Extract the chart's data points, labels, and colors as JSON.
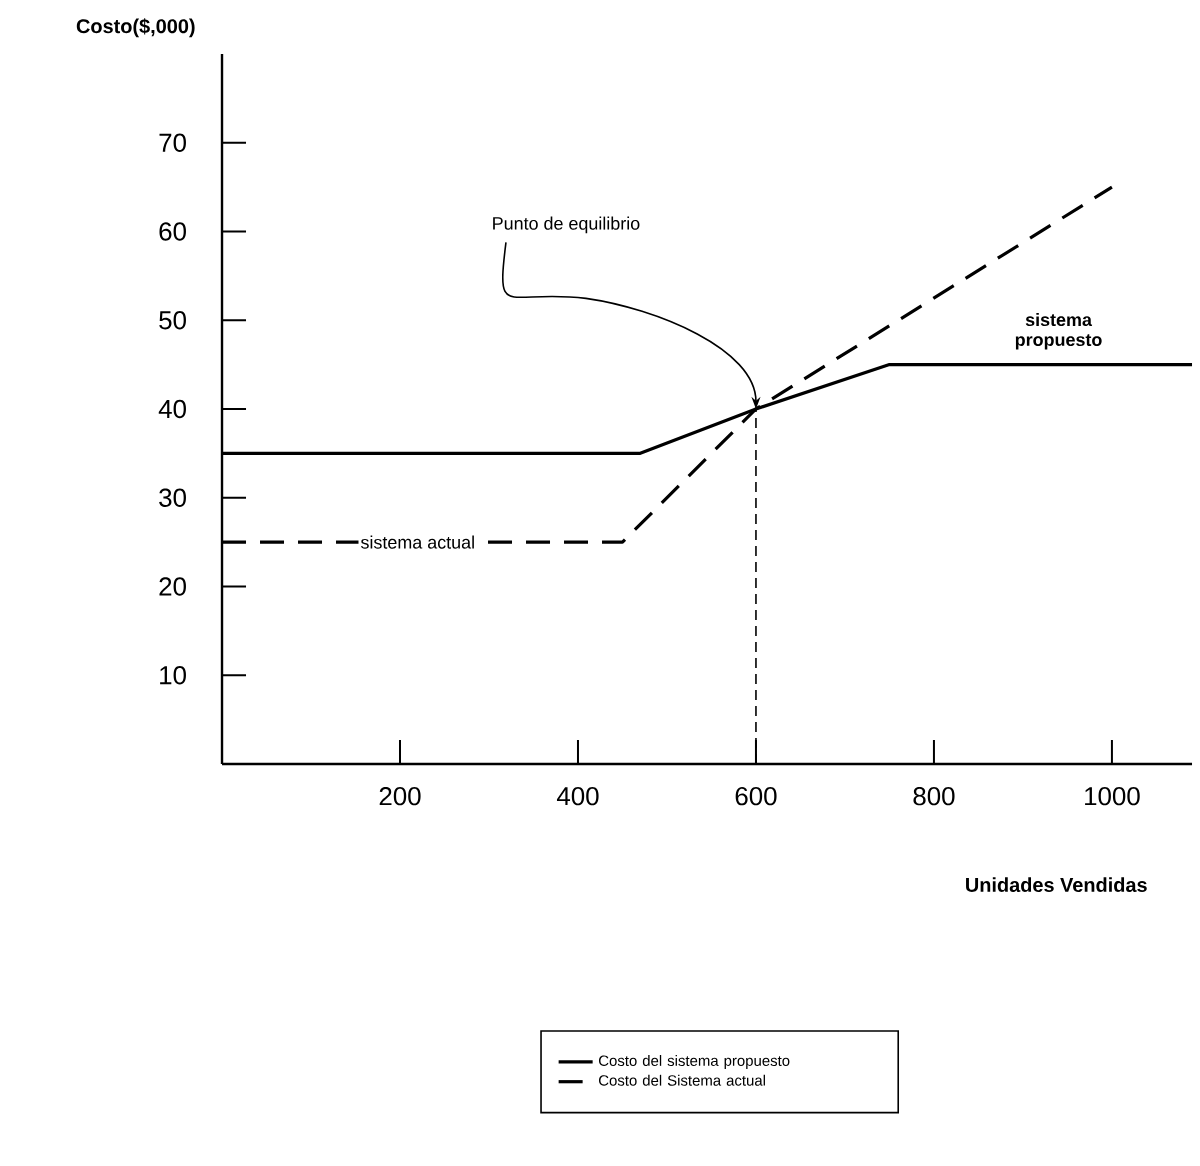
{
  "chart_data": {
    "type": "line",
    "xlabel": "Unidades Vendidas",
    "ylabel": "Costo($,000)",
    "xlim": [
      0,
      1090
    ],
    "ylim": [
      0,
      80
    ],
    "xticks": [
      200,
      400,
      600,
      800,
      1000
    ],
    "yticks": [
      10,
      20,
      30,
      40,
      50,
      60,
      70
    ],
    "grid": false,
    "legend": "bottom",
    "marker": "none",
    "series": [
      {
        "name": "Costo del sistema propuesto",
        "color": "#000000",
        "line_style": "solid",
        "x": [
          0,
          470,
          600,
          750,
          1090
        ],
        "values": [
          35,
          35,
          40,
          45,
          45
        ]
      },
      {
        "name": "Costo del Sistema actual",
        "color": "#000000",
        "line_style": "dashed",
        "x": [
          0,
          450,
          600,
          1000
        ],
        "values": [
          25,
          25,
          40,
          65
        ]
      }
    ],
    "ref_lines": [
      {
        "axis": "x",
        "value": 600,
        "color": "#000000",
        "line_style": "dashed"
      }
    ],
    "annotations": [
      {
        "text": "Punto de equilibrio",
        "x": 600,
        "y": 40
      },
      {
        "text": "sistema actual",
        "x": 220,
        "y": 25
      },
      {
        "text": "sistema propuesto",
        "x": 940,
        "y": 45
      }
    ]
  }
}
